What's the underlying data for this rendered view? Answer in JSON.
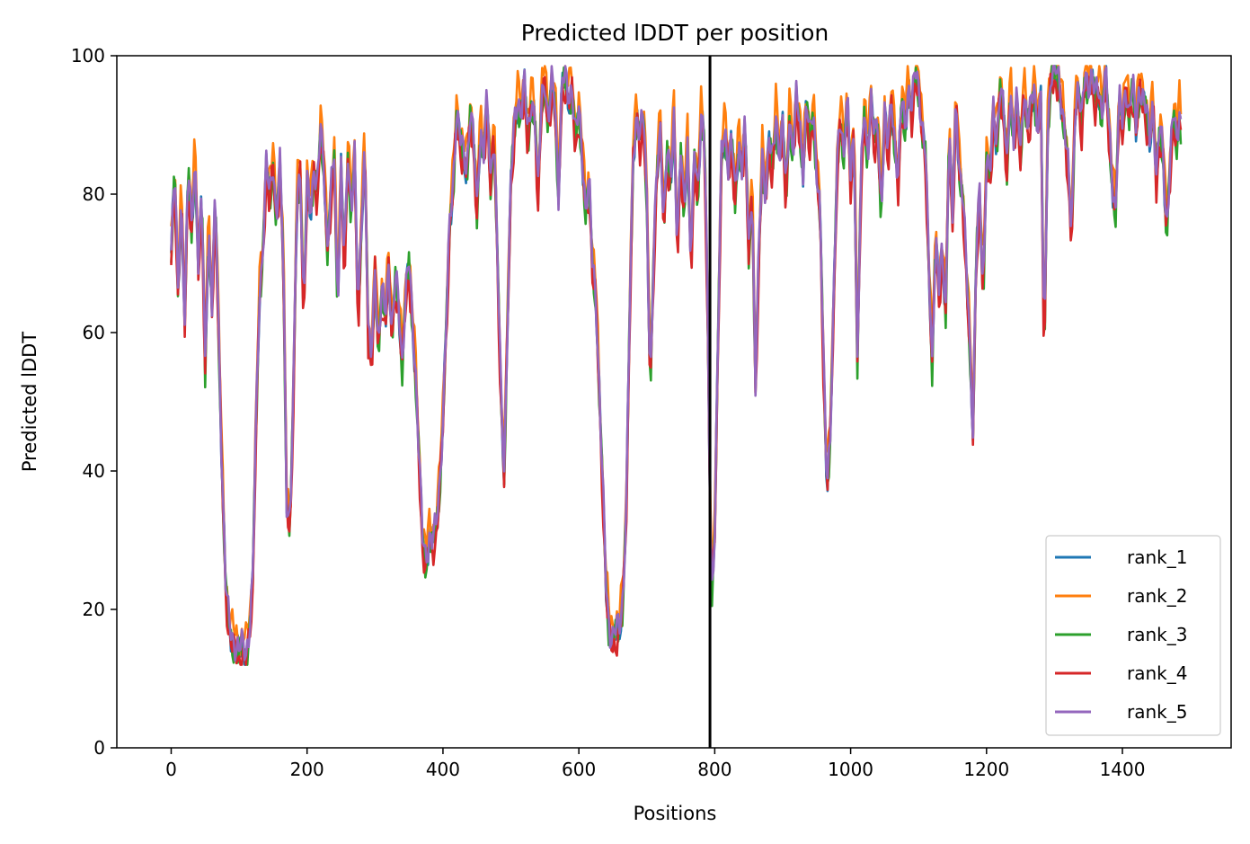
{
  "chart_data": {
    "type": "line",
    "title": "Predicted lDDT per position",
    "xlabel": "Positions",
    "ylabel": "Predicted lDDT",
    "xlim": [
      -80,
      1560
    ],
    "ylim": [
      0,
      100
    ],
    "xticks": [
      0,
      200,
      400,
      600,
      800,
      1000,
      1200,
      1400
    ],
    "yticks": [
      0,
      20,
      40,
      60,
      80,
      100
    ],
    "grid": false,
    "legend_position": "lower-right",
    "vline": 793,
    "x_max": 1487,
    "profile": [
      [
        0,
        72
      ],
      [
        5,
        84
      ],
      [
        10,
        66
      ],
      [
        15,
        80
      ],
      [
        20,
        62
      ],
      [
        25,
        84
      ],
      [
        30,
        75
      ],
      [
        35,
        86
      ],
      [
        40,
        70
      ],
      [
        45,
        80
      ],
      [
        50,
        55
      ],
      [
        55,
        76
      ],
      [
        60,
        64
      ],
      [
        65,
        80
      ],
      [
        70,
        60
      ],
      [
        75,
        40
      ],
      [
        80,
        24
      ],
      [
        85,
        18
      ],
      [
        90,
        16
      ],
      [
        95,
        15
      ],
      [
        100,
        14
      ],
      [
        105,
        15
      ],
      [
        110,
        14
      ],
      [
        115,
        17
      ],
      [
        120,
        24
      ],
      [
        125,
        48
      ],
      [
        130,
        66
      ],
      [
        135,
        72
      ],
      [
        140,
        84
      ],
      [
        145,
        80
      ],
      [
        150,
        85
      ],
      [
        155,
        76
      ],
      [
        160,
        84
      ],
      [
        165,
        72
      ],
      [
        170,
        36
      ],
      [
        175,
        32
      ],
      [
        180,
        52
      ],
      [
        185,
        80
      ],
      [
        190,
        84
      ],
      [
        195,
        62
      ],
      [
        200,
        82
      ],
      [
        205,
        78
      ],
      [
        210,
        84
      ],
      [
        215,
        80
      ],
      [
        220,
        90
      ],
      [
        225,
        84
      ],
      [
        230,
        72
      ],
      [
        235,
        80
      ],
      [
        240,
        86
      ],
      [
        245,
        64
      ],
      [
        250,
        84
      ],
      [
        255,
        70
      ],
      [
        260,
        86
      ],
      [
        265,
        78
      ],
      [
        270,
        86
      ],
      [
        275,
        62
      ],
      [
        280,
        76
      ],
      [
        285,
        88
      ],
      [
        290,
        60
      ],
      [
        295,
        56
      ],
      [
        300,
        70
      ],
      [
        305,
        58
      ],
      [
        310,
        66
      ],
      [
        315,
        62
      ],
      [
        320,
        70
      ],
      [
        325,
        60
      ],
      [
        330,
        68
      ],
      [
        335,
        64
      ],
      [
        340,
        56
      ],
      [
        345,
        66
      ],
      [
        350,
        70
      ],
      [
        355,
        62
      ],
      [
        360,
        54
      ],
      [
        365,
        42
      ],
      [
        370,
        30
      ],
      [
        375,
        27
      ],
      [
        380,
        31
      ],
      [
        385,
        30
      ],
      [
        390,
        32
      ],
      [
        395,
        38
      ],
      [
        400,
        48
      ],
      [
        405,
        62
      ],
      [
        410,
        76
      ],
      [
        415,
        82
      ],
      [
        420,
        92
      ],
      [
        425,
        88
      ],
      [
        430,
        86
      ],
      [
        435,
        84
      ],
      [
        440,
        92
      ],
      [
        445,
        88
      ],
      [
        450,
        78
      ],
      [
        455,
        90
      ],
      [
        460,
        86
      ],
      [
        465,
        94
      ],
      [
        470,
        82
      ],
      [
        475,
        90
      ],
      [
        480,
        72
      ],
      [
        485,
        52
      ],
      [
        490,
        40
      ],
      [
        495,
        62
      ],
      [
        500,
        82
      ],
      [
        505,
        90
      ],
      [
        510,
        94
      ],
      [
        515,
        92
      ],
      [
        520,
        96
      ],
      [
        525,
        88
      ],
      [
        530,
        94
      ],
      [
        535,
        92
      ],
      [
        540,
        80
      ],
      [
        545,
        94
      ],
      [
        550,
        97
      ],
      [
        555,
        90
      ],
      [
        560,
        96
      ],
      [
        565,
        94
      ],
      [
        570,
        80
      ],
      [
        575,
        96
      ],
      [
        580,
        97
      ],
      [
        585,
        94
      ],
      [
        590,
        96
      ],
      [
        595,
        88
      ],
      [
        600,
        92
      ],
      [
        605,
        86
      ],
      [
        610,
        78
      ],
      [
        615,
        82
      ],
      [
        620,
        70
      ],
      [
        625,
        66
      ],
      [
        630,
        52
      ],
      [
        635,
        38
      ],
      [
        640,
        24
      ],
      [
        645,
        17
      ],
      [
        650,
        16
      ],
      [
        655,
        17
      ],
      [
        660,
        18
      ],
      [
        665,
        22
      ],
      [
        670,
        36
      ],
      [
        675,
        64
      ],
      [
        680,
        86
      ],
      [
        685,
        92
      ],
      [
        690,
        88
      ],
      [
        695,
        92
      ],
      [
        700,
        80
      ],
      [
        705,
        52
      ],
      [
        710,
        70
      ],
      [
        715,
        84
      ],
      [
        720,
        90
      ],
      [
        725,
        76
      ],
      [
        730,
        86
      ],
      [
        735,
        82
      ],
      [
        740,
        92
      ],
      [
        745,
        72
      ],
      [
        750,
        86
      ],
      [
        755,
        78
      ],
      [
        760,
        88
      ],
      [
        765,
        70
      ],
      [
        770,
        86
      ],
      [
        775,
        80
      ],
      [
        780,
        92
      ],
      [
        785,
        88
      ],
      [
        790,
        60
      ],
      [
        795,
        22
      ],
      [
        800,
        32
      ],
      [
        805,
        60
      ],
      [
        810,
        86
      ],
      [
        815,
        90
      ],
      [
        820,
        84
      ],
      [
        825,
        88
      ],
      [
        830,
        80
      ],
      [
        835,
        88
      ],
      [
        840,
        84
      ],
      [
        845,
        90
      ],
      [
        850,
        72
      ],
      [
        855,
        82
      ],
      [
        860,
        52
      ],
      [
        865,
        72
      ],
      [
        870,
        86
      ],
      [
        875,
        80
      ],
      [
        880,
        88
      ],
      [
        885,
        84
      ],
      [
        890,
        92
      ],
      [
        895,
        86
      ],
      [
        900,
        90
      ],
      [
        905,
        80
      ],
      [
        910,
        92
      ],
      [
        915,
        86
      ],
      [
        920,
        94
      ],
      [
        925,
        90
      ],
      [
        930,
        84
      ],
      [
        935,
        94
      ],
      [
        940,
        88
      ],
      [
        945,
        92
      ],
      [
        950,
        84
      ],
      [
        955,
        78
      ],
      [
        960,
        56
      ],
      [
        965,
        38
      ],
      [
        970,
        46
      ],
      [
        975,
        64
      ],
      [
        980,
        84
      ],
      [
        985,
        92
      ],
      [
        990,
        86
      ],
      [
        995,
        94
      ],
      [
        1000,
        82
      ],
      [
        1005,
        90
      ],
      [
        1010,
        56
      ],
      [
        1015,
        82
      ],
      [
        1020,
        92
      ],
      [
        1025,
        86
      ],
      [
        1030,
        94
      ],
      [
        1035,
        88
      ],
      [
        1040,
        90
      ],
      [
        1045,
        78
      ],
      [
        1050,
        92
      ],
      [
        1055,
        86
      ],
      [
        1060,
        94
      ],
      [
        1065,
        88
      ],
      [
        1070,
        82
      ],
      [
        1075,
        94
      ],
      [
        1080,
        90
      ],
      [
        1085,
        96
      ],
      [
        1090,
        92
      ],
      [
        1095,
        98
      ],
      [
        1100,
        96
      ],
      [
        1105,
        90
      ],
      [
        1110,
        86
      ],
      [
        1115,
        70
      ],
      [
        1120,
        56
      ],
      [
        1125,
        74
      ],
      [
        1130,
        66
      ],
      [
        1135,
        72
      ],
      [
        1140,
        64
      ],
      [
        1145,
        90
      ],
      [
        1150,
        76
      ],
      [
        1155,
        94
      ],
      [
        1160,
        84
      ],
      [
        1165,
        80
      ],
      [
        1170,
        70
      ],
      [
        1175,
        60
      ],
      [
        1180,
        46
      ],
      [
        1185,
        72
      ],
      [
        1190,
        80
      ],
      [
        1195,
        66
      ],
      [
        1200,
        86
      ],
      [
        1205,
        82
      ],
      [
        1210,
        92
      ],
      [
        1215,
        88
      ],
      [
        1220,
        96
      ],
      [
        1225,
        92
      ],
      [
        1230,
        84
      ],
      [
        1235,
        96
      ],
      [
        1240,
        88
      ],
      [
        1245,
        94
      ],
      [
        1250,
        86
      ],
      [
        1255,
        96
      ],
      [
        1260,
        90
      ],
      [
        1265,
        92
      ],
      [
        1270,
        96
      ],
      [
        1275,
        90
      ],
      [
        1280,
        94
      ],
      [
        1285,
        56
      ],
      [
        1290,
        90
      ],
      [
        1295,
        98
      ],
      [
        1300,
        98
      ],
      [
        1305,
        97
      ],
      [
        1310,
        94
      ],
      [
        1315,
        90
      ],
      [
        1320,
        84
      ],
      [
        1325,
        74
      ],
      [
        1330,
        92
      ],
      [
        1335,
        96
      ],
      [
        1340,
        90
      ],
      [
        1345,
        98
      ],
      [
        1350,
        96
      ],
      [
        1355,
        97
      ],
      [
        1360,
        94
      ],
      [
        1365,
        96
      ],
      [
        1370,
        92
      ],
      [
        1375,
        98
      ],
      [
        1380,
        90
      ],
      [
        1385,
        82
      ],
      [
        1390,
        78
      ],
      [
        1395,
        94
      ],
      [
        1400,
        90
      ],
      [
        1405,
        96
      ],
      [
        1410,
        92
      ],
      [
        1415,
        96
      ],
      [
        1420,
        90
      ],
      [
        1425,
        96
      ],
      [
        1430,
        94
      ],
      [
        1435,
        92
      ],
      [
        1440,
        88
      ],
      [
        1445,
        94
      ],
      [
        1450,
        82
      ],
      [
        1455,
        90
      ],
      [
        1460,
        86
      ],
      [
        1465,
        75
      ],
      [
        1470,
        84
      ],
      [
        1475,
        92
      ],
      [
        1480,
        88
      ],
      [
        1485,
        94
      ],
      [
        1487,
        86
      ]
    ],
    "series": [
      {
        "name": "rank_1",
        "color": "#1f77b4",
        "offset": -0.5
      },
      {
        "name": "rank_2",
        "color": "#ff7f0e",
        "offset": 1.5
      },
      {
        "name": "rank_3",
        "color": "#2ca02c",
        "offset": -1.0
      },
      {
        "name": "rank_4",
        "color": "#d62728",
        "offset": -1.5
      },
      {
        "name": "rank_5",
        "color": "#9467bd",
        "offset": 0.0
      }
    ]
  }
}
